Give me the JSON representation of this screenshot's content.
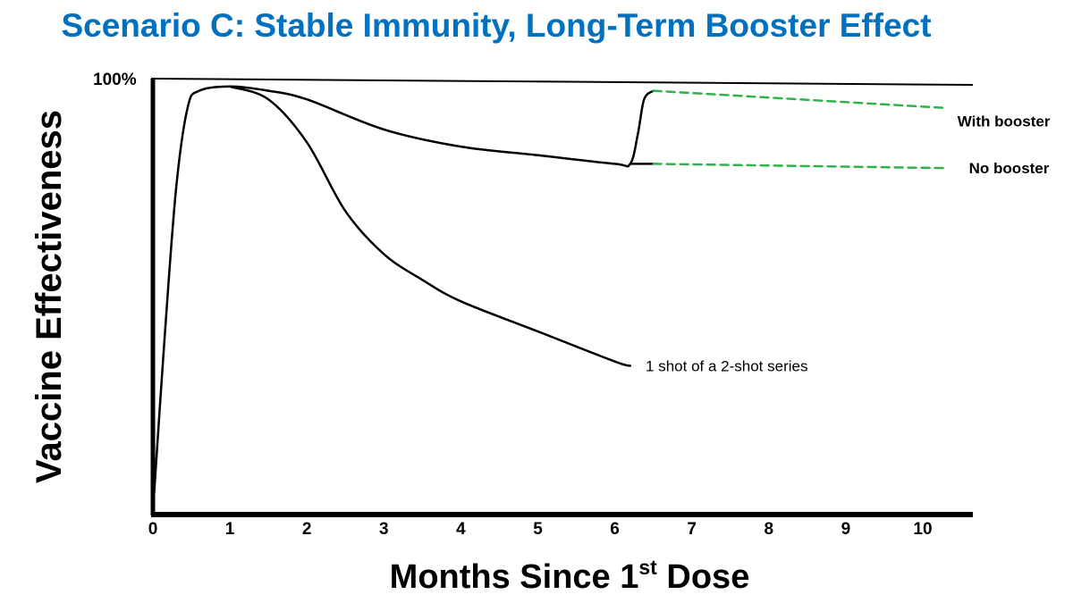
{
  "chart_data": {
    "type": "line",
    "title": "Scenario C: Stable Immunity, Long-Term Booster Effect",
    "ylabel": "Vaccine Effectiveness",
    "xlabel": "Months Since 1st Dose",
    "xlabel_parts": {
      "main": "Months Since 1",
      "sup": "st",
      "rest": " Dose"
    },
    "y_max_label": "100%",
    "x_ticks": [
      0,
      1,
      2,
      3,
      4,
      5,
      6,
      7,
      8,
      9,
      10
    ],
    "xlim": [
      0,
      10.8
    ],
    "ylim": [
      0,
      100
    ],
    "grid": false,
    "colors": {
      "solid": "#000000",
      "projection": "#2fb34a"
    },
    "series": [
      {
        "name": "With booster",
        "style": "solid",
        "x": [
          0,
          0.15,
          0.3,
          0.45,
          0.6,
          1.0,
          1.5,
          2.0,
          3.0,
          4.0,
          5.0,
          6.0,
          6.2,
          6.3,
          6.38,
          6.5
        ],
        "y": [
          0,
          40,
          75,
          94,
          98,
          99,
          98,
          96,
          89,
          85,
          83,
          81,
          81,
          88,
          96,
          98
        ]
      },
      {
        "name": "With booster",
        "style": "dashed",
        "x": [
          6.5,
          10.3
        ],
        "y": [
          98,
          94
        ]
      },
      {
        "name": "No booster",
        "style": "solid",
        "x": [
          6.2,
          6.5
        ],
        "y": [
          81,
          81
        ]
      },
      {
        "name": "No booster",
        "style": "dashed",
        "x": [
          6.5,
          10.3
        ],
        "y": [
          81,
          80
        ]
      },
      {
        "name": "1 shot of a 2-shot series",
        "style": "solid",
        "x": [
          1.0,
          1.5,
          2.0,
          2.5,
          3.0,
          3.5,
          4.0,
          5.0,
          6.0,
          6.2
        ],
        "y": [
          99,
          96,
          86,
          70,
          60,
          54,
          49,
          42,
          35,
          34
        ]
      }
    ],
    "annotations": [
      {
        "text": "With booster",
        "x": 10.45,
        "y": 91,
        "bold": true
      },
      {
        "text": "No booster",
        "x": 10.6,
        "y": 80,
        "bold": true
      },
      {
        "text": "1 shot of a 2-shot series",
        "x": 6.4,
        "y": 34,
        "bold": false
      }
    ]
  }
}
